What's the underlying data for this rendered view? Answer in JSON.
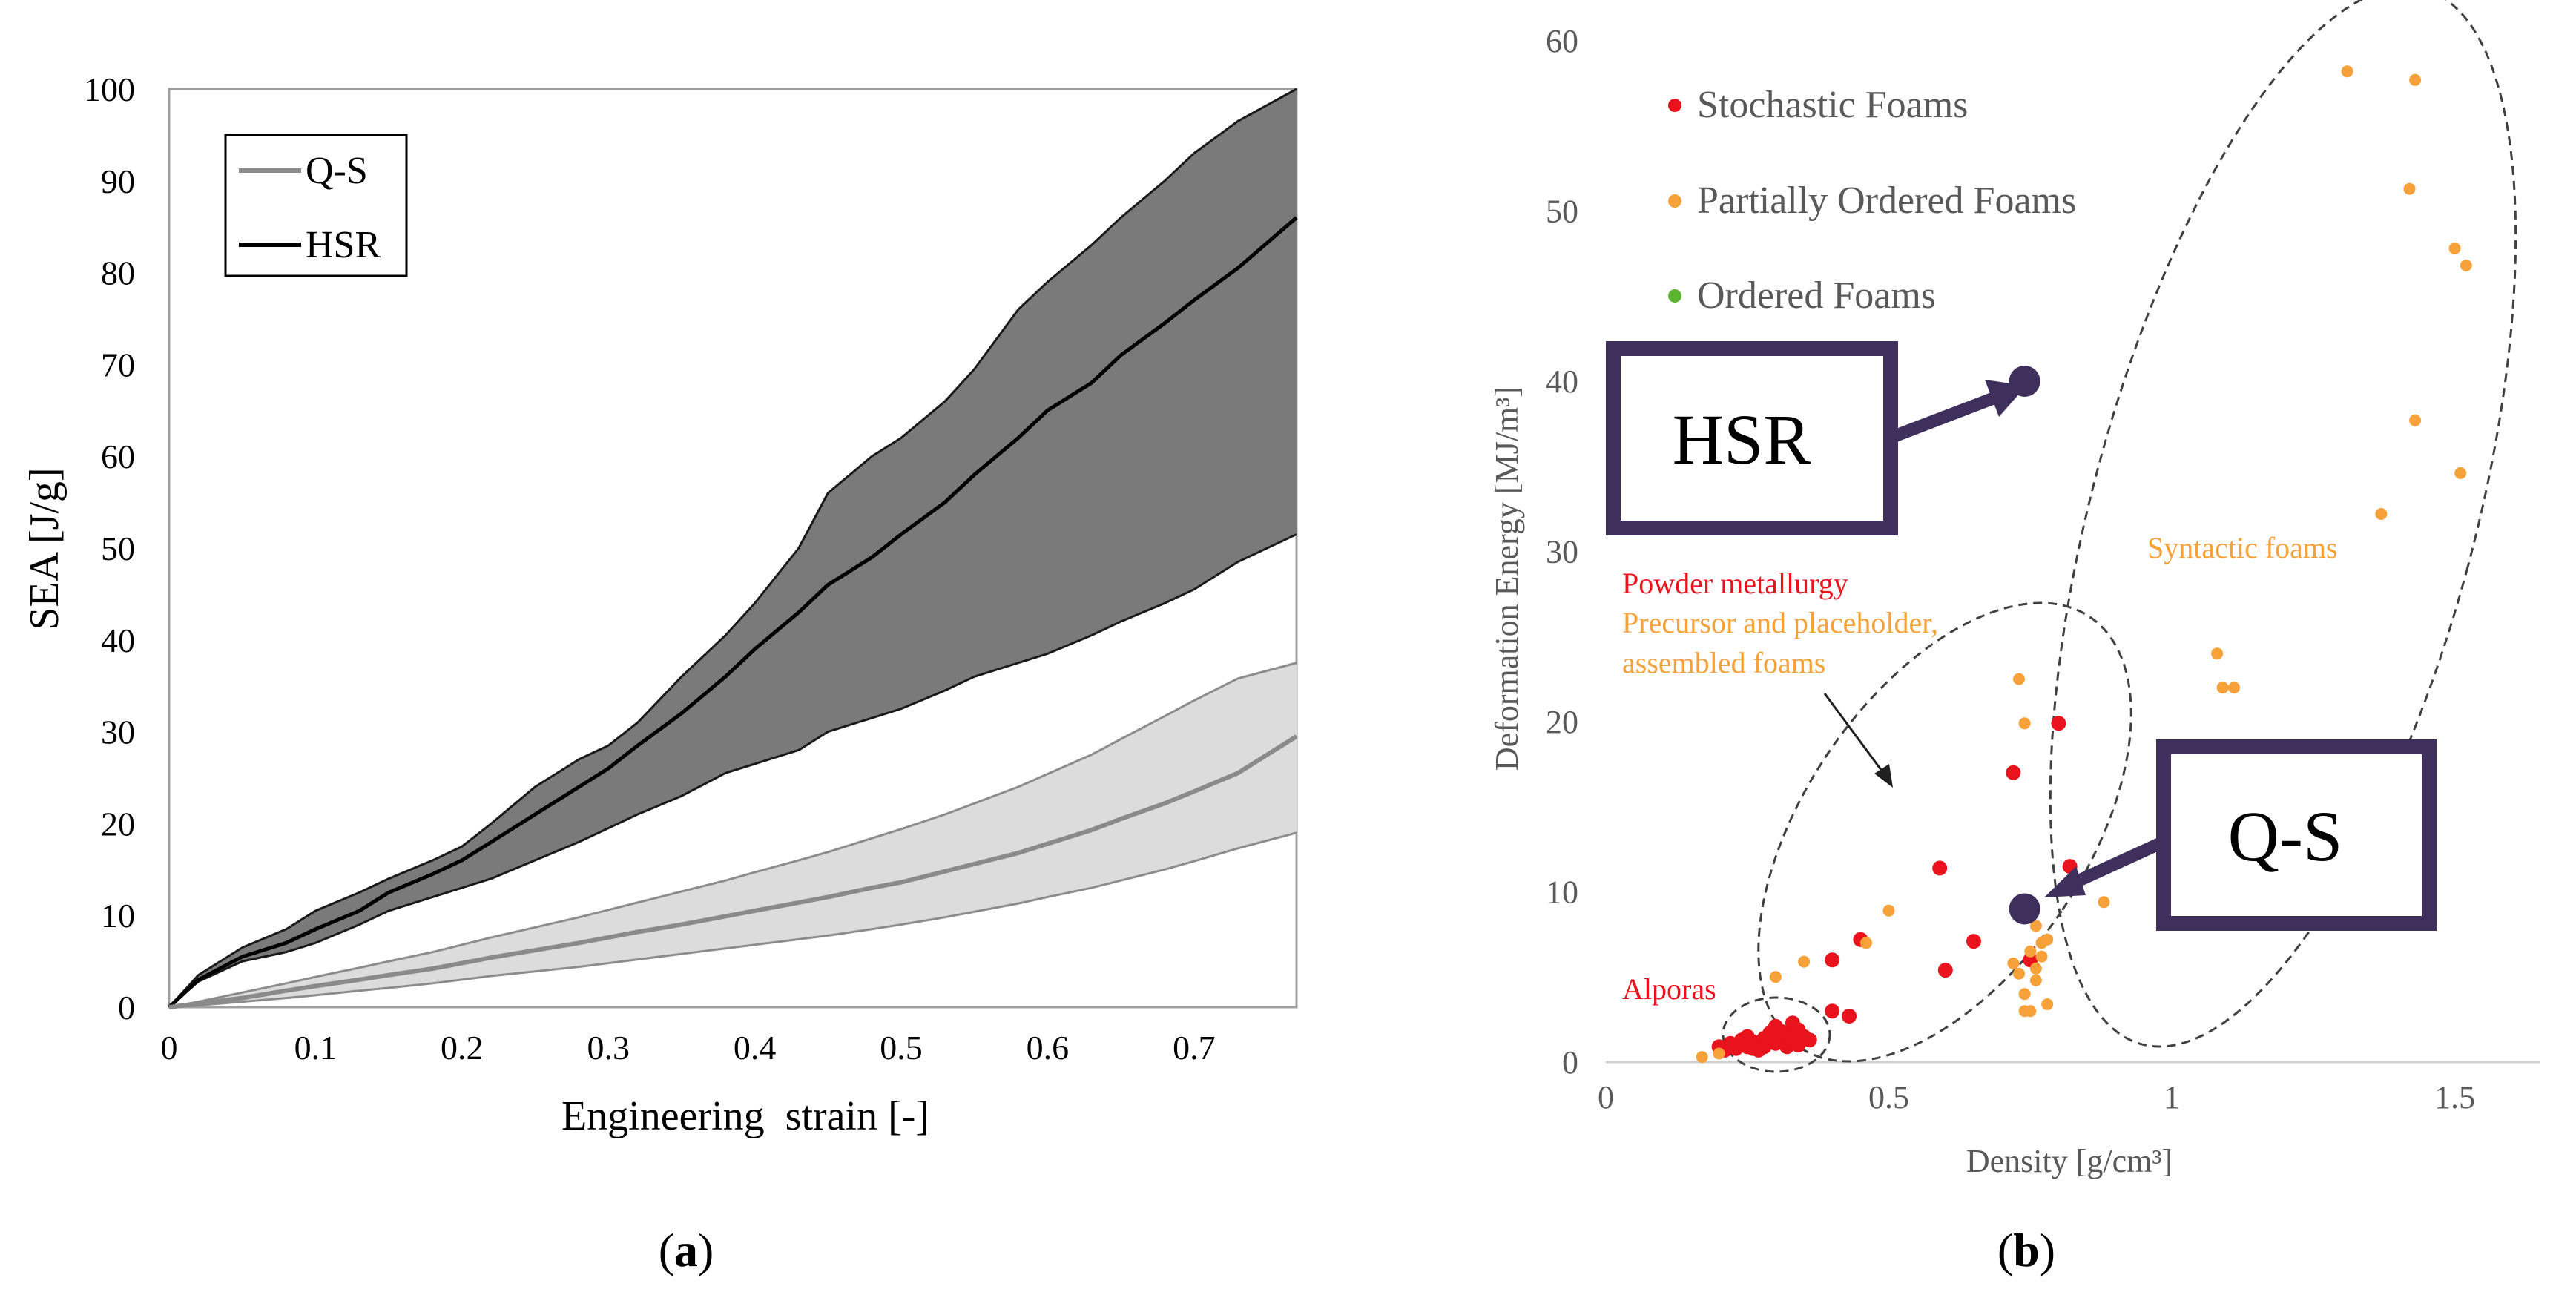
{
  "chart_data": [
    {
      "id": "a",
      "type": "area",
      "panel_label_paren_open": "(",
      "panel_label": "a",
      "panel_label_paren_close": ")",
      "xlabel": "Engineering  strain [-]",
      "ylabel": "SEA [J/g]",
      "xlim": [
        0,
        0.77
      ],
      "ylim": [
        0,
        100
      ],
      "x_ticks": [
        0,
        0.1,
        0.2,
        0.3,
        0.4,
        0.5,
        0.6,
        0.7
      ],
      "x_tick_labels": [
        "0",
        "0.1",
        "0.2",
        "0.3",
        "0.4",
        "0.5",
        "0.6",
        "0.7"
      ],
      "y_ticks": [
        0,
        10,
        20,
        30,
        40,
        50,
        60,
        70,
        80,
        90,
        100
      ],
      "y_tick_labels": [
        "0",
        "10",
        "20",
        "30",
        "40",
        "50",
        "60",
        "70",
        "80",
        "90",
        "100"
      ],
      "legend": [
        "Q-S",
        "HSR"
      ],
      "legend_position": "top-left",
      "series": [
        {
          "name": "HSR",
          "x": [
            0,
            0.02,
            0.05,
            0.08,
            0.1,
            0.13,
            0.15,
            0.18,
            0.2,
            0.22,
            0.25,
            0.28,
            0.3,
            0.32,
            0.35,
            0.38,
            0.4,
            0.43,
            0.45,
            0.48,
            0.5,
            0.53,
            0.55,
            0.58,
            0.6,
            0.63,
            0.65,
            0.68,
            0.7,
            0.73,
            0.77
          ],
          "mean": [
            0,
            3,
            5.5,
            7,
            8.5,
            10.5,
            12.5,
            14.5,
            16,
            18,
            21,
            24,
            26,
            28.5,
            32,
            36,
            39,
            43,
            46,
            49,
            51.5,
            55,
            58,
            62,
            65,
            68,
            71,
            74.5,
            77,
            80.5,
            86
          ],
          "upper": [
            0,
            3.5,
            6.5,
            8.5,
            10.5,
            12.5,
            14,
            16,
            17.5,
            20,
            24,
            27,
            28.5,
            31,
            36,
            40.5,
            44,
            50,
            56,
            60,
            62,
            66,
            69.5,
            76,
            79,
            83,
            86,
            90,
            93,
            96.5,
            100
          ],
          "lower": [
            0,
            2.8,
            5,
            6,
            7,
            9,
            10.5,
            12,
            13,
            14,
            16,
            18,
            19.5,
            21,
            23,
            25.5,
            26.5,
            28,
            30,
            31.5,
            32.5,
            34.5,
            36,
            37.5,
            38.5,
            40.5,
            42,
            44,
            45.5,
            48.5,
            51.5
          ]
        },
        {
          "name": "Q-S",
          "x": [
            0,
            0.02,
            0.05,
            0.08,
            0.1,
            0.13,
            0.15,
            0.18,
            0.2,
            0.22,
            0.25,
            0.28,
            0.3,
            0.32,
            0.35,
            0.38,
            0.4,
            0.43,
            0.45,
            0.48,
            0.5,
            0.53,
            0.55,
            0.58,
            0.6,
            0.63,
            0.65,
            0.68,
            0.7,
            0.73,
            0.77
          ],
          "mean": [
            0,
            0.4,
            1,
            1.8,
            2.3,
            3,
            3.5,
            4.2,
            4.8,
            5.4,
            6.2,
            7,
            7.6,
            8.2,
            9,
            9.9,
            10.5,
            11.4,
            12,
            13,
            13.6,
            14.8,
            15.6,
            16.8,
            17.8,
            19.3,
            20.5,
            22.2,
            23.5,
            25.5,
            29.5
          ],
          "upper": [
            0,
            0.6,
            1.6,
            2.6,
            3.3,
            4.3,
            5,
            6,
            6.8,
            7.6,
            8.7,
            9.8,
            10.6,
            11.4,
            12.6,
            13.8,
            14.7,
            16,
            16.9,
            18.4,
            19.4,
            21,
            22.2,
            24,
            25.4,
            27.5,
            29.2,
            31.7,
            33.4,
            35.8,
            37.5
          ],
          "lower": [
            0,
            0.2,
            0.6,
            1,
            1.3,
            1.8,
            2.1,
            2.6,
            3,
            3.4,
            3.9,
            4.4,
            4.8,
            5.2,
            5.8,
            6.4,
            6.8,
            7.4,
            7.8,
            8.5,
            9,
            9.8,
            10.4,
            11.3,
            12,
            13,
            13.8,
            15,
            15.9,
            17.3,
            19
          ]
        }
      ]
    },
    {
      "id": "b",
      "type": "scatter",
      "panel_label_paren_open": "(",
      "panel_label": "b",
      "panel_label_paren_close": ")",
      "xlabel": "Density [g/cm³]",
      "ylabel": "Deformation Energy [MJ/m³]",
      "xlim": [
        0,
        1.65
      ],
      "ylim": [
        0,
        60
      ],
      "x_ticks": [
        0,
        0.5,
        1,
        1.5
      ],
      "x_tick_labels": [
        "0",
        "0.5",
        "1",
        "1.5"
      ],
      "y_ticks": [
        0,
        10,
        20,
        30,
        40,
        50,
        60
      ],
      "y_tick_labels": [
        "0",
        "10",
        "20",
        "30",
        "40",
        "50",
        "60"
      ],
      "legend": [
        {
          "label": "Stochastic Foams",
          "color": "#e8131c"
        },
        {
          "label": "Partially Ordered Foams",
          "color": "#f7a13a"
        },
        {
          "label": "Ordered Foams",
          "color": "#5cb531"
        }
      ],
      "legend_position": "top-left",
      "annotations": {
        "powder_metallurgy": "Powder metallurgy",
        "precursor_line1": "Precursor and placeholder,",
        "precursor_line2": "assembled foams",
        "syntactic": "Syntactic foams",
        "alporas": "Alporas",
        "hsr_box": "HSR",
        "qs_box": "Q-S",
        "hsr_point": {
          "x": 0.74,
          "y": 40
        },
        "qs_point": {
          "x": 0.74,
          "y": 9
        }
      },
      "series": [
        {
          "name": "Stochastic Foams",
          "color": "#e8131c",
          "points": [
            [
              0.2,
              0.9
            ],
            [
              0.21,
              0.7
            ],
            [
              0.22,
              1.1
            ],
            [
              0.23,
              0.8
            ],
            [
              0.24,
              1.3
            ],
            [
              0.25,
              0.9
            ],
            [
              0.25,
              1.5
            ],
            [
              0.26,
              0.8
            ],
            [
              0.26,
              1.2
            ],
            [
              0.27,
              1.0
            ],
            [
              0.28,
              1.4
            ],
            [
              0.28,
              0.9
            ],
            [
              0.29,
              1.7
            ],
            [
              0.3,
              1.1
            ],
            [
              0.3,
              2.1
            ],
            [
              0.31,
              1.3
            ],
            [
              0.32,
              0.9
            ],
            [
              0.32,
              1.6
            ],
            [
              0.33,
              2.3
            ],
            [
              0.33,
              1.2
            ],
            [
              0.34,
              1.9
            ],
            [
              0.34,
              1.0
            ],
            [
              0.35,
              1.5
            ],
            [
              0.36,
              1.3
            ],
            [
              0.24,
              1.0
            ],
            [
              0.27,
              0.7
            ],
            [
              0.29,
              1.2
            ],
            [
              0.31,
              1.8
            ],
            [
              0.4,
              6.0
            ],
            [
              0.45,
              7.2
            ],
            [
              0.4,
              3.0
            ],
            [
              0.43,
              2.7
            ],
            [
              0.59,
              11.4
            ],
            [
              0.6,
              5.4
            ],
            [
              0.65,
              7.1
            ],
            [
              0.72,
              17.0
            ],
            [
              0.8,
              19.9
            ],
            [
              0.75,
              6.0
            ],
            [
              0.82,
              11.5
            ]
          ]
        },
        {
          "name": "Partially Ordered Foams",
          "color": "#f7a13a",
          "points": [
            [
              0.17,
              0.3
            ],
            [
              0.2,
              0.5
            ],
            [
              0.3,
              5.0
            ],
            [
              0.35,
              5.9
            ],
            [
              0.46,
              7.0
            ],
            [
              0.5,
              8.9
            ],
            [
              0.73,
              22.5
            ],
            [
              0.74,
              19.9
            ],
            [
              0.72,
              5.8
            ],
            [
              0.73,
              5.2
            ],
            [
              0.74,
              4.0
            ],
            [
              0.75,
              3.0
            ],
            [
              0.75,
              6.5
            ],
            [
              0.76,
              5.5
            ],
            [
              0.77,
              6.2
            ],
            [
              0.77,
              7.0
            ],
            [
              0.76,
              4.8
            ],
            [
              0.78,
              7.2
            ],
            [
              0.76,
              8.0
            ],
            [
              0.78,
              3.4
            ],
            [
              0.74,
              3.0
            ],
            [
              0.88,
              9.4
            ],
            [
              1.08,
              24.0
            ],
            [
              1.09,
              22.0
            ],
            [
              1.11,
              22.0
            ],
            [
              1.31,
              58.2
            ],
            [
              1.37,
              32.2
            ],
            [
              1.42,
              51.3
            ],
            [
              1.43,
              57.7
            ],
            [
              1.43,
              37.7
            ],
            [
              1.5,
              47.8
            ],
            [
              1.51,
              34.6
            ],
            [
              1.52,
              46.8
            ]
          ]
        },
        {
          "name": "Ordered Foams",
          "color": "#5cb531",
          "points": []
        }
      ]
    }
  ]
}
